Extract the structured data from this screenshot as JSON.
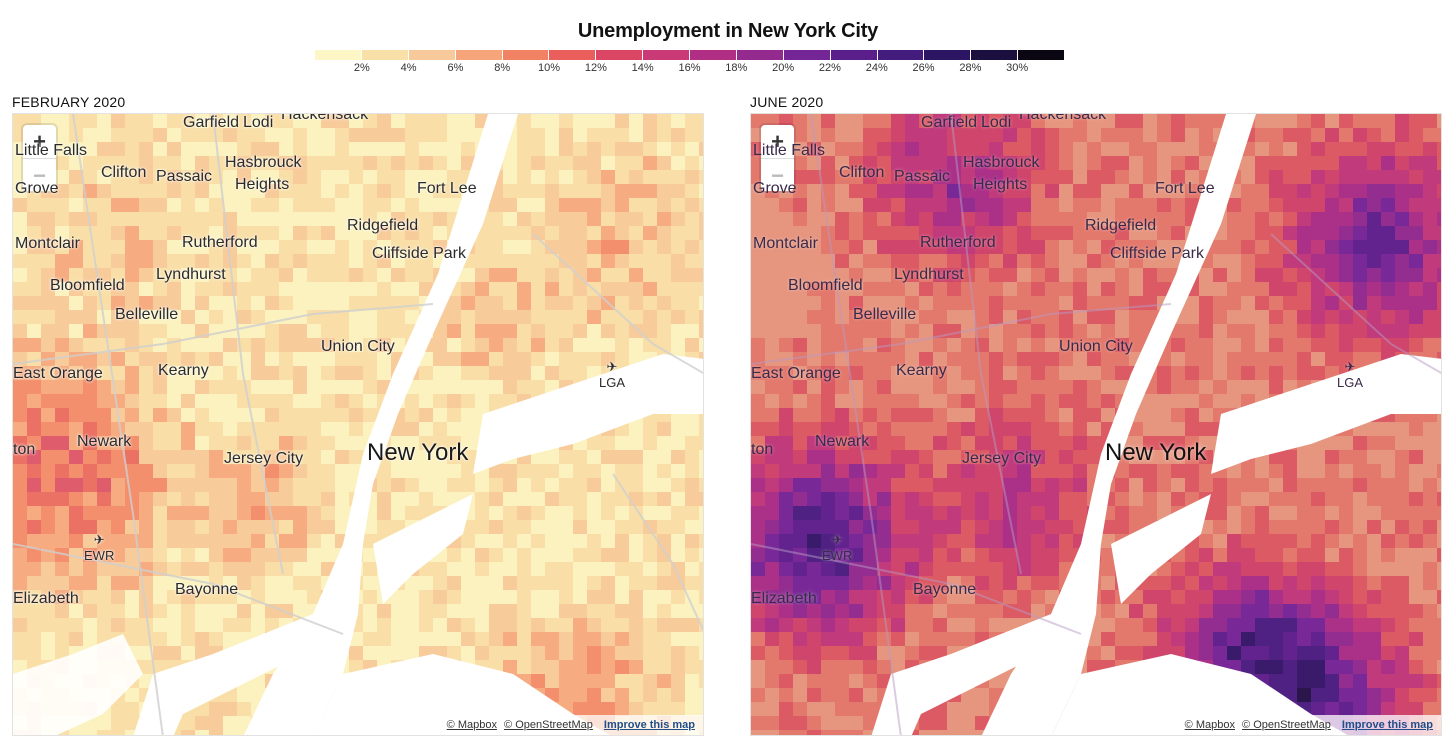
{
  "title": "Unemployment in New York City",
  "legend": {
    "colors": [
      "#fcf7c4",
      "#f9e0a8",
      "#f8c99a",
      "#f6a47a",
      "#f28264",
      "#ea5f5b",
      "#db4664",
      "#c93a77",
      "#b02f85",
      "#942a8e",
      "#752696",
      "#5b1f8c",
      "#441c7e",
      "#2c1563",
      "#1a0f3e",
      "#0a0612"
    ],
    "ticks": [
      "2%",
      "4%",
      "6%",
      "8%",
      "10%",
      "12%",
      "14%",
      "16%",
      "18%",
      "20%",
      "22%",
      "24%",
      "26%",
      "28%",
      "30%"
    ]
  },
  "panels": [
    {
      "label": "FEBRUARY 2020",
      "theme": "light"
    },
    {
      "label": "JUNE 2020",
      "theme": "dark"
    }
  ],
  "places": {
    "garfield": "Garfield",
    "lodi": "Lodi",
    "hackensack": "Hackensack",
    "little_falls": "Little Falls",
    "clifton": "Clifton",
    "passaic": "Passaic",
    "hasbrouck": "Hasbrouck",
    "heights": "Heights",
    "fort_lee": "Fort Lee",
    "grove": "Grove",
    "montclair": "Montclair",
    "rutherford": "Rutherford",
    "ridgefield": "Ridgefield",
    "cliffside_park": "Cliffside Park",
    "lyndhurst": "Lyndhurst",
    "bloomfield": "Bloomfield",
    "belleville": "Belleville",
    "union_city": "Union City",
    "lga": "LGA",
    "east_orange": "East Orange",
    "kearny": "Kearny",
    "newark": "Newark",
    "new_york": "New York",
    "jersey_city": "Jersey City",
    "ewr": "EWR",
    "bayonne": "Bayonne",
    "elizabeth": "Elizabeth",
    "ton": "ton"
  },
  "zoom": {
    "in": "+",
    "out": "−"
  },
  "attribution": {
    "mapbox": "© Mapbox",
    "osm": "© OpenStreetMap",
    "improve": "Improve this map"
  }
}
